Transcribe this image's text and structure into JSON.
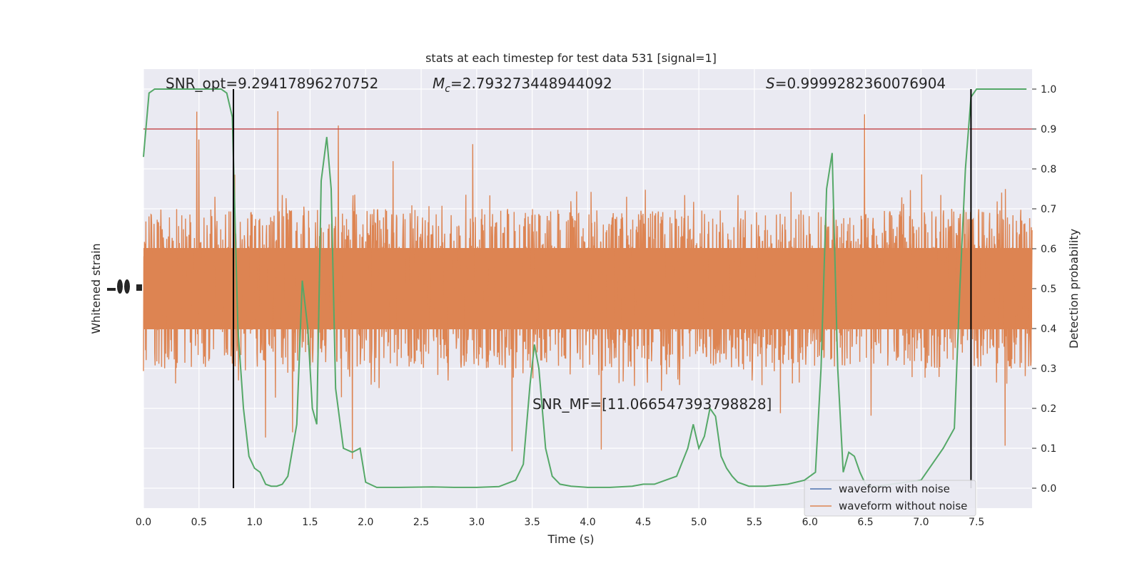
{
  "chart_data": {
    "type": "line",
    "title": "stats at each timestep for test data 531 [signal=1]",
    "xlabel": "Time (s)",
    "ylabel_left": "Whitened strain",
    "ylabel_right": "Detection probability",
    "xlim": [
      0.0,
      8.0
    ],
    "ylim_right": [
      -0.05,
      1.05
    ],
    "x_ticks": [
      "0.0",
      "0.5",
      "1.0",
      "1.5",
      "2.0",
      "2.5",
      "3.0",
      "3.5",
      "4.0",
      "4.5",
      "5.0",
      "5.5",
      "6.0",
      "6.5",
      "7.0",
      "7.5"
    ],
    "y_ticks_right": [
      "0.0",
      "0.1",
      "0.2",
      "0.3",
      "0.4",
      "0.5",
      "0.6",
      "0.7",
      "0.8",
      "0.9",
      "1.0"
    ],
    "grid": true,
    "legend_position": "lower-right",
    "annotations": {
      "snr_opt": "SNR_opt=9.29417896270752",
      "mc_symbol": "M",
      "mc_sub": "c",
      "mc_value": "=2.793273448944092",
      "s_symbol": "S",
      "s_value": "=0.9999282360076904",
      "snr_mf": "SNR_MF=[11.066547393798828]"
    },
    "threshold": 0.9,
    "vertical_markers": [
      0.81,
      7.45
    ],
    "series": [
      {
        "name": "waveform with noise",
        "color": "#4c72b0",
        "values": []
      },
      {
        "name": "waveform without noise",
        "color": "#dd8452",
        "center": 0.5,
        "band": [
          0.3,
          0.7
        ],
        "extremes": [
          0.0,
          1.0
        ]
      },
      {
        "color": "#55a868",
        "x": [
          0.0,
          0.05,
          0.1,
          0.2,
          0.3,
          0.4,
          0.5,
          0.6,
          0.7,
          0.75,
          0.8,
          0.85,
          0.9,
          0.95,
          1.0,
          1.05,
          1.1,
          1.15,
          1.2,
          1.25,
          1.3,
          1.38,
          1.43,
          1.48,
          1.52,
          1.56,
          1.6,
          1.65,
          1.69,
          1.73,
          1.8,
          1.88,
          1.95,
          2.0,
          2.1,
          2.3,
          2.6,
          2.8,
          3.0,
          3.2,
          3.35,
          3.42,
          3.48,
          3.52,
          3.56,
          3.62,
          3.68,
          3.75,
          3.85,
          4.0,
          4.2,
          4.4,
          4.5,
          4.6,
          4.7,
          4.8,
          4.9,
          4.95,
          5.0,
          5.05,
          5.1,
          5.15,
          5.2,
          5.25,
          5.3,
          5.35,
          5.45,
          5.6,
          5.8,
          5.95,
          6.05,
          6.1,
          6.15,
          6.2,
          6.25,
          6.3,
          6.35,
          6.4,
          6.45,
          6.5,
          6.55,
          6.6,
          7.0,
          7.2,
          7.3,
          7.35,
          7.4,
          7.45,
          7.5,
          7.55,
          7.6,
          7.7,
          7.8,
          7.95
        ],
        "y": [
          0.83,
          0.99,
          1.0,
          1.0,
          1.0,
          1.0,
          1.0,
          1.0,
          1.0,
          0.99,
          0.93,
          0.4,
          0.2,
          0.08,
          0.05,
          0.04,
          0.01,
          0.005,
          0.005,
          0.01,
          0.03,
          0.16,
          0.52,
          0.4,
          0.2,
          0.16,
          0.77,
          0.88,
          0.75,
          0.25,
          0.1,
          0.09,
          0.1,
          0.015,
          0.002,
          0.002,
          0.003,
          0.002,
          0.002,
          0.004,
          0.02,
          0.06,
          0.26,
          0.36,
          0.3,
          0.1,
          0.03,
          0.01,
          0.005,
          0.002,
          0.002,
          0.005,
          0.01,
          0.01,
          0.02,
          0.03,
          0.1,
          0.16,
          0.1,
          0.13,
          0.2,
          0.18,
          0.08,
          0.05,
          0.03,
          0.015,
          0.005,
          0.005,
          0.01,
          0.02,
          0.04,
          0.3,
          0.75,
          0.84,
          0.3,
          0.04,
          0.09,
          0.08,
          0.04,
          0.01,
          0.005,
          0.005,
          0.02,
          0.1,
          0.15,
          0.5,
          0.8,
          0.98,
          1.0,
          1.0,
          1.0,
          1.0,
          1.0,
          1.0
        ]
      }
    ],
    "colors": {
      "background": "#eaeaf2",
      "grid": "#ffffff",
      "threshold": "#c44e52",
      "marker": "#000000"
    }
  }
}
